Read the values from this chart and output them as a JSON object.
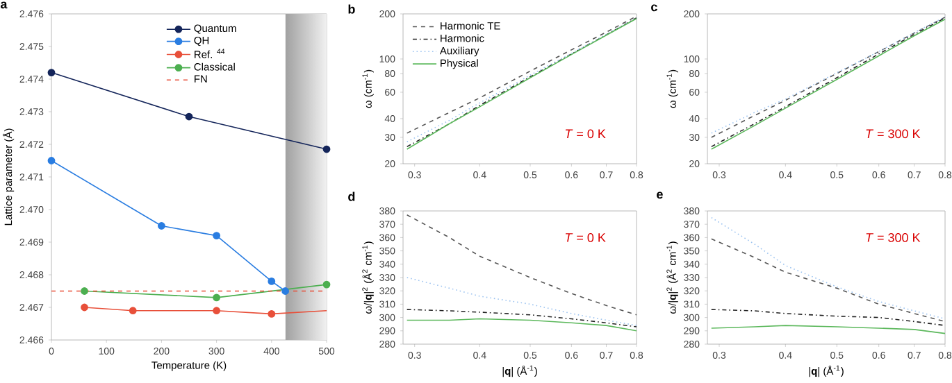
{
  "chart_data": [
    {
      "type": "line",
      "title": "a",
      "xlabel": "Temperature (K)",
      "ylabel": "Lattice parameter (Å)",
      "xlim": [
        0,
        500
      ],
      "ylim": [
        2.466,
        2.476
      ],
      "xticks": [
        0,
        100,
        200,
        300,
        400,
        500
      ],
      "yticks": [
        2.466,
        2.467,
        2.468,
        2.469,
        {
          "value": 2.47,
          "label": "2.470"
        },
        2.471,
        2.472,
        2.473,
        2.474,
        2.475,
        2.476
      ],
      "legend": "top",
      "marker": "circle",
      "bands": [
        {
          "axis": "x",
          "from": 425,
          "to": 500,
          "color": "#a0a0a0"
        }
      ],
      "series": [
        {
          "name": "Quantum",
          "color": "#14255a",
          "x": [
            0,
            250,
            500
          ],
          "values": [
            2.4742,
            2.47285,
            2.47185
          ]
        },
        {
          "name": "QH",
          "color": "#2a7de1",
          "x": [
            0,
            200,
            300,
            400,
            425
          ],
          "values": [
            2.4715,
            2.4695,
            2.4692,
            2.4678,
            2.4675
          ]
        },
        {
          "name": "Ref. $^{44}$",
          "color": "#e8503a",
          "x": [
            60,
            148,
            300,
            400
          ],
          "values": [
            2.467,
            2.4669,
            2.4669,
            2.4668
          ]
        },
        {
          "name": "Classical",
          "color": "#4caf50",
          "x": [
            60,
            300,
            500
          ],
          "values": [
            2.4675,
            2.4673,
            2.4677
          ]
        },
        {
          "name": "FN",
          "color": "#e8503a",
          "line_style": "dashed",
          "marker": "none",
          "x": [
            0,
            500
          ],
          "values": [
            2.4675,
            2.4675
          ]
        },
        {
          "color": "#e8503a",
          "marker": "none",
          "x": [
            400,
            500
          ],
          "values": [
            2.4668,
            2.4669
          ]
        }
      ]
    },
    {
      "type": "line",
      "title": "b",
      "ylabel": "ω (cm$^{-1}$)",
      "log": "xy",
      "x": [
        0.29,
        0.35,
        0.4,
        0.5,
        0.6,
        0.7,
        0.8
      ],
      "xlim": [
        0.285,
        0.8
      ],
      "ylim": [
        20,
        200
      ],
      "xticks": [
        0.3,
        0.4,
        0.5,
        0.6,
        0.7,
        0.8
      ],
      "yticks": [
        20,
        30,
        40,
        60,
        80,
        100,
        200
      ],
      "legend": "top left",
      "annotations": [
        "*T* = 0 K"
      ],
      "series": [
        {
          "name": "Harmonic TE",
          "color": "#555555",
          "line_style": "dashed",
          "values": [
            32,
            44,
            55,
            83,
            115,
            151,
            193
          ]
        },
        {
          "name": "Harmonic",
          "color": "#222222",
          "line_style": "dashdot",
          "values": [
            26,
            37,
            49,
            76,
            108,
            145,
            188
          ]
        },
        {
          "name": "Auxiliary",
          "color": "#9cc3f0",
          "line_style": "dotted",
          "values": [
            28,
            39,
            51,
            78,
            109,
            146,
            188
          ]
        },
        {
          "name": "Physical",
          "color": "#5cb85c",
          "line_style": "solid",
          "values": [
            25,
            37,
            48,
            75,
            107,
            144,
            186
          ]
        }
      ]
    },
    {
      "type": "line",
      "title": "c",
      "ylabel": "ω (cm$^{-1}$)",
      "log": "xy",
      "x": [
        0.29,
        0.35,
        0.4,
        0.5,
        0.6,
        0.7,
        0.8
      ],
      "xlim": [
        0.285,
        0.8
      ],
      "ylim": [
        20,
        200
      ],
      "xticks": [
        0.3,
        0.4,
        0.5,
        0.6,
        0.7,
        0.8
      ],
      "yticks": [
        20,
        30,
        40,
        60,
        80,
        100,
        200
      ],
      "annotations": [
        "*T* = 300 K"
      ],
      "series": [
        {
          "color": "#555555",
          "line_style": "dashed",
          "values": [
            30,
            42,
            53,
            80,
            112,
            149,
            190
          ]
        },
        {
          "color": "#222222",
          "line_style": "dashdot",
          "values": [
            26,
            37,
            48,
            75,
            108,
            146,
            188
          ]
        },
        {
          "color": "#9cc3f0",
          "line_style": "dotted",
          "values": [
            32,
            44,
            54,
            81,
            112,
            150,
            191
          ]
        },
        {
          "color": "#5cb85c",
          "line_style": "solid",
          "values": [
            25,
            36,
            47,
            73,
            105,
            143,
            184
          ]
        }
      ]
    },
    {
      "type": "line",
      "title": "d",
      "xlabel": "|**q**| (Å$^{-1}$)",
      "ylabel": "ω/|**q**|$^{2}$ (Å$^{2}$ cm$^{-1}$)",
      "log": "x",
      "x": [
        0.29,
        0.35,
        0.4,
        0.5,
        0.6,
        0.7,
        0.8
      ],
      "xlim": [
        0.285,
        0.8
      ],
      "ylim": [
        280,
        380
      ],
      "xticks": [
        0.3,
        0.4,
        0.5,
        0.6,
        0.7,
        0.8
      ],
      "yticks": [
        280,
        290,
        300,
        310,
        320,
        330,
        340,
        350,
        360,
        370,
        380
      ],
      "annotations": [
        "*T* = 0 K"
      ],
      "series": [
        {
          "color": "#555555",
          "line_style": "dashed",
          "values": [
            377,
            360,
            346,
            330,
            318,
            309,
            302
          ]
        },
        {
          "color": "#222222",
          "line_style": "dashdot",
          "values": [
            306,
            305,
            304,
            302,
            299,
            296,
            293
          ]
        },
        {
          "color": "#9cc3f0",
          "line_style": "dotted",
          "values": [
            330,
            322,
            316,
            310,
            303,
            298,
            294
          ]
        },
        {
          "color": "#5cb85c",
          "line_style": "solid",
          "values": [
            298,
            298,
            299,
            298,
            296,
            294,
            290
          ]
        }
      ]
    },
    {
      "type": "line",
      "title": "e",
      "xlabel": "|**q**| (Å$^{-1}$)",
      "ylabel": "ω/|**q**|$^{2}$ (Å$^{2}$ cm$^{-1}$)",
      "log": "x",
      "x": [
        0.29,
        0.35,
        0.4,
        0.5,
        0.6,
        0.7,
        0.8
      ],
      "xlim": [
        0.285,
        0.8
      ],
      "ylim": [
        280,
        380
      ],
      "xticks": [
        0.3,
        0.4,
        0.5,
        0.6,
        0.7,
        0.8
      ],
      "yticks": [
        280,
        290,
        300,
        310,
        320,
        330,
        340,
        350,
        360,
        370,
        380
      ],
      "annotations": [
        "*T* = 300 K"
      ],
      "series": [
        {
          "color": "#555555",
          "line_style": "dashed",
          "values": [
            359,
            345,
            334,
            322,
            310,
            303,
            297
          ]
        },
        {
          "color": "#222222",
          "line_style": "dashdot",
          "values": [
            306,
            305,
            303,
            301,
            300,
            297,
            294
          ]
        },
        {
          "color": "#9cc3f0",
          "line_style": "dotted",
          "values": [
            375,
            355,
            339,
            323,
            312,
            305,
            299
          ]
        },
        {
          "color": "#5cb85c",
          "line_style": "solid",
          "values": [
            292,
            293,
            294,
            293,
            292,
            291,
            288
          ]
        }
      ]
    }
  ]
}
